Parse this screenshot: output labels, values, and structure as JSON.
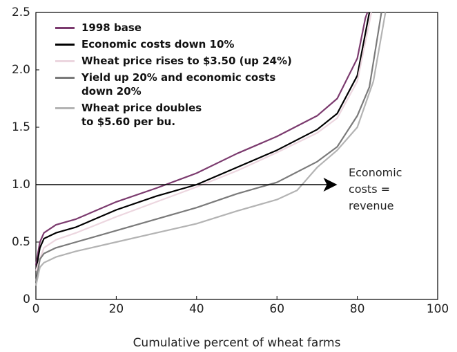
{
  "chart_data": {
    "type": "line",
    "x_label": "Cumulative percent of wheat farms",
    "xlim": [
      0,
      100
    ],
    "xticks": [
      0,
      20,
      40,
      60,
      80,
      100
    ],
    "ylim": [
      0,
      2.5
    ],
    "yticks": [
      0,
      0.5,
      {
        "value": 1,
        "label": "1.0"
      },
      1.5,
      {
        "value": 2,
        "label": "2.0"
      },
      2.5
    ],
    "series": [
      {
        "name": "1998 base",
        "color": "#7b3a6e",
        "x": [
          0,
          1,
          2,
          5,
          10,
          20,
          30,
          40,
          50,
          60,
          70,
          75,
          80,
          82,
          82.5
        ],
        "values": [
          0.3,
          0.5,
          0.58,
          0.65,
          0.7,
          0.85,
          0.97,
          1.1,
          1.27,
          1.42,
          1.6,
          1.75,
          2.1,
          2.45,
          2.5
        ]
      },
      {
        "name": "Economic costs down 10%",
        "color": "#000000",
        "x": [
          0,
          1,
          2,
          5,
          10,
          20,
          30,
          40,
          50,
          60,
          70,
          75,
          80,
          83
        ],
        "values": [
          0.25,
          0.45,
          0.53,
          0.58,
          0.63,
          0.78,
          0.9,
          1.0,
          1.15,
          1.3,
          1.48,
          1.62,
          1.95,
          2.5
        ]
      },
      {
        "name": "Wheat price rises to $3.50 (up 24%)",
        "color": "#ecd6df",
        "x": [
          0,
          2,
          5,
          10,
          20,
          30,
          40,
          50,
          60,
          70,
          75,
          80,
          83.5
        ],
        "values": [
          0.25,
          0.45,
          0.52,
          0.58,
          0.72,
          0.85,
          0.98,
          1.12,
          1.28,
          1.45,
          1.58,
          1.9,
          2.5
        ]
      },
      {
        "name": "Yield up 20% and economic costs down 20%",
        "color": "#7a7a7a",
        "x": [
          0,
          1,
          2,
          5,
          10,
          20,
          30,
          40,
          50,
          60,
          70,
          75,
          80,
          83,
          86
        ],
        "values": [
          0.15,
          0.35,
          0.4,
          0.45,
          0.5,
          0.6,
          0.7,
          0.8,
          0.92,
          1.02,
          1.2,
          1.33,
          1.6,
          1.85,
          2.5
        ]
      },
      {
        "name": "Wheat price doubles to $5.60 per bu.",
        "color": "#b3b3b3",
        "x": [
          0,
          1,
          2,
          5,
          10,
          20,
          30,
          40,
          50,
          60,
          65,
          70,
          75,
          80,
          84,
          87
        ],
        "values": [
          0.12,
          0.28,
          0.32,
          0.37,
          0.42,
          0.5,
          0.58,
          0.66,
          0.77,
          0.87,
          0.95,
          1.15,
          1.3,
          1.5,
          1.9,
          2.5
        ]
      }
    ],
    "annotation": {
      "text": "Economic costs = revenue",
      "y": 1,
      "x": [
        0,
        75
      ]
    }
  }
}
